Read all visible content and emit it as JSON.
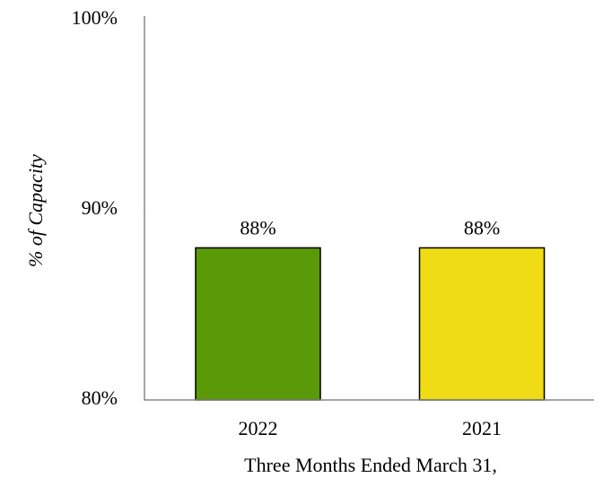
{
  "chart_data": {
    "type": "bar",
    "categories": [
      "2022",
      "2021"
    ],
    "values": [
      88,
      88
    ],
    "value_labels": [
      "88%",
      "88%"
    ],
    "colors": [
      "#5a9a08",
      "#f0dc14"
    ],
    "ylabel": "% of Capacity",
    "xlabel": "Three Months Ended March 31,",
    "ylim": [
      80,
      100
    ],
    "yticks": [
      {
        "value": 80,
        "label": "80%"
      },
      {
        "value": 90,
        "label": "90%"
      },
      {
        "value": 100,
        "label": "100%"
      }
    ]
  }
}
